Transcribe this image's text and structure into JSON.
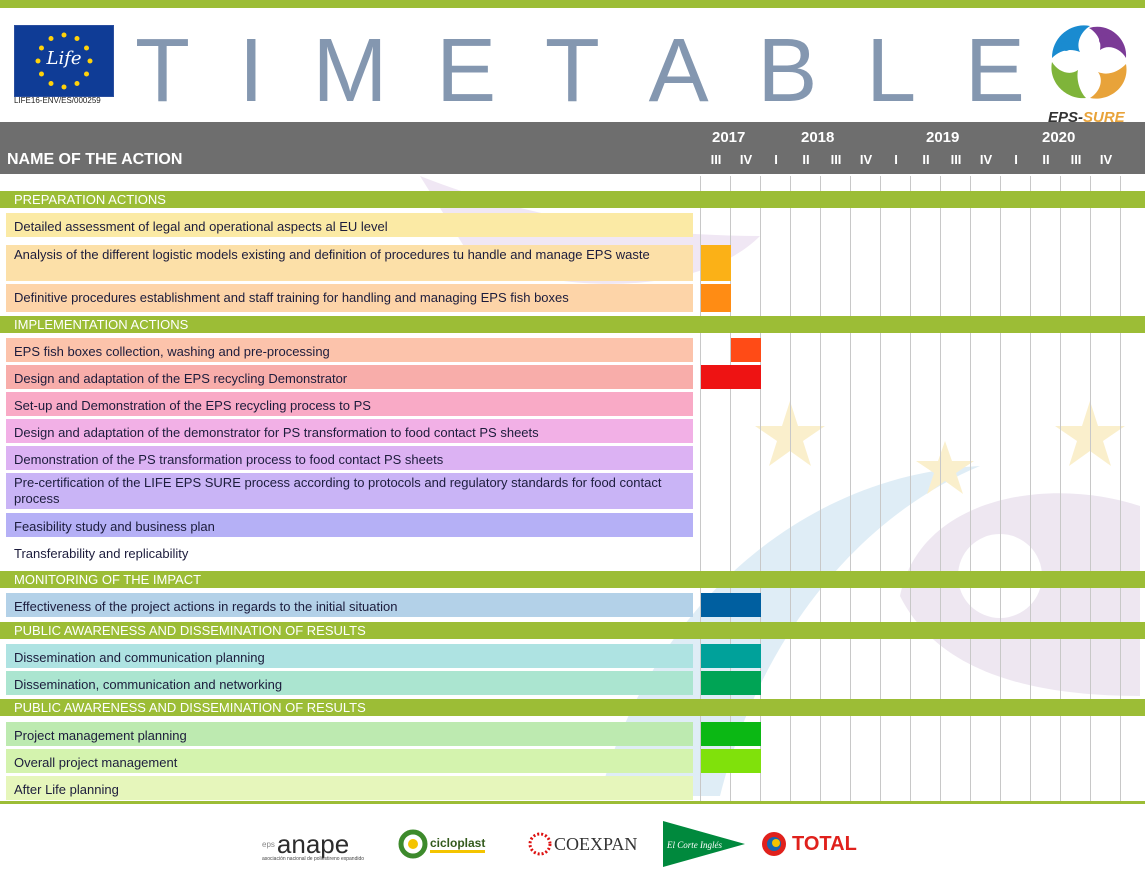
{
  "header": {
    "title": "TIMETABLE",
    "eu_logo_text": "Life",
    "eu_code": "LIFE16-ENV/ES/000259",
    "brand_prefix": "EPS-",
    "brand_suffix": "SURE"
  },
  "table_head": {
    "name_label": "NAME OF THE ACTION",
    "years": [
      "2017",
      "2018",
      "2019",
      "2020"
    ],
    "quarters": [
      "III",
      "IV",
      "I",
      "II",
      "III",
      "IV",
      "I",
      "II",
      "III",
      "IV",
      "I",
      "II",
      "III",
      "IV"
    ]
  },
  "sections": [
    {
      "label": "PREPARATION ACTIONS"
    },
    {
      "label": "IMPLEMENTATION ACTIONS"
    },
    {
      "label": "MONITORING OF THE IMPACT"
    },
    {
      "label": "PUBLIC AWARENESS AND DISSEMINATION OF RESULTS"
    },
    {
      "label": "PUBLIC AWARENESS AND DISSEMINATION OF RESULTS"
    }
  ],
  "rows": [
    {
      "label": "Detailed assessment of legal and operational aspects al EU level",
      "color": "#fbeaa5"
    },
    {
      "label": "Analysis of the different logistic models existing and definition of procedures tu handle and manage EPS waste",
      "color": "#fce0a8",
      "bar_color": "#fbb117",
      "bar_start": 0,
      "bar_span": 1
    },
    {
      "label": "Definitive procedures establishment and staff training for handling and managing EPS fish boxes",
      "color": "#fdd4a8",
      "bar_color": "#ff8c14",
      "bar_start": 0,
      "bar_span": 1
    },
    {
      "label": "EPS fish boxes collection, washing and pre-processing",
      "color": "#fcc3ab",
      "bar_color": "#ff4b16",
      "bar_start": 1,
      "bar_span": 1
    },
    {
      "label": "Design and adaptation of the EPS recycling Demonstrator",
      "color": "#f8adaa",
      "bar_color": "#ee1313",
      "bar_start": 0,
      "bar_span": 2
    },
    {
      "label": "Set-up and Demonstration of the EPS recycling process to PS",
      "color": "#f9aac6",
      "bar_color": "",
      "bar_start": 0,
      "bar_span": 0
    },
    {
      "label": "Design and adaptation of the demonstrator for PS transformation to food contact PS sheets",
      "color": "#f2b0e6",
      "bar_color": "",
      "bar_start": 0,
      "bar_span": 0
    },
    {
      "label": "Demonstration of the PS transformation process to food contact PS sheets",
      "color": "#dcb2f3",
      "bar_color": "",
      "bar_start": 0,
      "bar_span": 0
    },
    {
      "label": "Pre-certification of the LIFE EPS SURE process according to protocols and regulatory standards for food contact process",
      "color": "#c9b4f6",
      "bar_color": "",
      "bar_start": 0,
      "bar_span": 0
    },
    {
      "label": "Feasibility study and business plan",
      "color": "#b5b0f6",
      "bar_color": "",
      "bar_start": 0,
      "bar_span": 0
    },
    {
      "label": "Transferability and replicability",
      "color": "",
      "bar_color": "",
      "bar_start": 0,
      "bar_span": 0
    },
    {
      "label": "Effectiveness of the project actions in regards to the initial situation",
      "color": "#b3d1e8",
      "bar_color": "#005fa0",
      "bar_start": 0,
      "bar_span": 2
    },
    {
      "label": "Dissemination and communication planning",
      "color": "#aee3e2",
      "bar_color": "#00a19a",
      "bar_start": 0,
      "bar_span": 2
    },
    {
      "label": "Dissemination, communication and networking",
      "color": "#abe5d0",
      "bar_color": "#00a455",
      "bar_start": 0,
      "bar_span": 2
    },
    {
      "label": "Project management planning",
      "color": "#bdeab0",
      "bar_color": "#0bb814",
      "bar_start": 0,
      "bar_span": 2
    },
    {
      "label": "Overall project management",
      "color": "#d4f3ae",
      "bar_color": "#80e10b",
      "bar_start": 0,
      "bar_span": 2
    },
    {
      "label": "After Life planning",
      "color": "#e6f6bb",
      "bar_color": "",
      "bar_start": 0,
      "bar_span": 0
    }
  ],
  "footer": {
    "logos": [
      "anape",
      "cicloplast",
      "COEXPAN",
      "El Corte Inglés",
      "TOTAL"
    ],
    "anape_sub": "asociación nacional de poliestireno expandido"
  },
  "colors": {
    "accent_green": "#9cbd36",
    "header_gray": "#6e6e6e",
    "title_blue": "#8497b0"
  }
}
